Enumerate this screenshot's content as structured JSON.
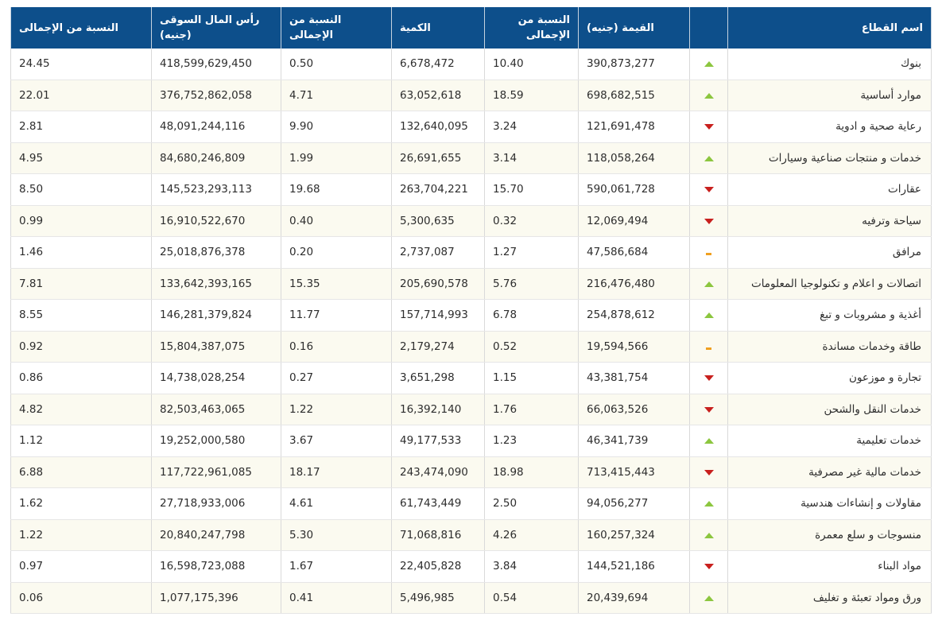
{
  "colors": {
    "header_bg": "#0d4f8b",
    "up": "#8cc63f",
    "down": "#c8201e",
    "flat": "#f0a020",
    "row_alt": "#fbfaf0"
  },
  "table": {
    "headers": {
      "sector": "اسم القطاع",
      "trend": "",
      "value": "القيمة (جنيه)",
      "value_pct": "النسبة من الإجمالى",
      "quantity": "الكمية",
      "quantity_pct": "النسبة من الإجمالى",
      "market_cap": "رأس المال السوقى (جنيه)",
      "market_cap_pct": "النسبة من الإجمالى"
    },
    "rows": [
      {
        "sector": "بنوك",
        "trend": "up",
        "value": "390,873,277",
        "value_pct": "10.40",
        "quantity": "6,678,472",
        "quantity_pct": "0.50",
        "market_cap": "418,599,629,450",
        "market_cap_pct": "24.45"
      },
      {
        "sector": "موارد أساسية",
        "trend": "up",
        "value": "698,682,515",
        "value_pct": "18.59",
        "quantity": "63,052,618",
        "quantity_pct": "4.71",
        "market_cap": "376,752,862,058",
        "market_cap_pct": "22.01"
      },
      {
        "sector": "رعاية صحية و ادوية",
        "trend": "down",
        "value": "121,691,478",
        "value_pct": "3.24",
        "quantity": "132,640,095",
        "quantity_pct": "9.90",
        "market_cap": "48,091,244,116",
        "market_cap_pct": "2.81"
      },
      {
        "sector": "خدمات و منتجات صناعية وسيارات",
        "trend": "up",
        "value": "118,058,264",
        "value_pct": "3.14",
        "quantity": "26,691,655",
        "quantity_pct": "1.99",
        "market_cap": "84,680,246,809",
        "market_cap_pct": "4.95"
      },
      {
        "sector": "عقارات",
        "trend": "down",
        "value": "590,061,728",
        "value_pct": "15.70",
        "quantity": "263,704,221",
        "quantity_pct": "19.68",
        "market_cap": "145,523,293,113",
        "market_cap_pct": "8.50"
      },
      {
        "sector": "سياحة وترفيه",
        "trend": "down",
        "value": "12,069,494",
        "value_pct": "0.32",
        "quantity": "5,300,635",
        "quantity_pct": "0.40",
        "market_cap": "16,910,522,670",
        "market_cap_pct": "0.99"
      },
      {
        "sector": "مرافق",
        "trend": "flat",
        "value": "47,586,684",
        "value_pct": "1.27",
        "quantity": "2,737,087",
        "quantity_pct": "0.20",
        "market_cap": "25,018,876,378",
        "market_cap_pct": "1.46"
      },
      {
        "sector": "اتصالات و اعلام و تكنولوجيا المعلومات",
        "trend": "up",
        "value": "216,476,480",
        "value_pct": "5.76",
        "quantity": "205,690,578",
        "quantity_pct": "15.35",
        "market_cap": "133,642,393,165",
        "market_cap_pct": "7.81"
      },
      {
        "sector": "أغذية و مشروبات و تبغ",
        "trend": "up",
        "value": "254,878,612",
        "value_pct": "6.78",
        "quantity": "157,714,993",
        "quantity_pct": "11.77",
        "market_cap": "146,281,379,824",
        "market_cap_pct": "8.55"
      },
      {
        "sector": "طاقة وخدمات مساندة",
        "trend": "flat",
        "value": "19,594,566",
        "value_pct": "0.52",
        "quantity": "2,179,274",
        "quantity_pct": "0.16",
        "market_cap": "15,804,387,075",
        "market_cap_pct": "0.92"
      },
      {
        "sector": "تجارة و موزعون",
        "trend": "down",
        "value": "43,381,754",
        "value_pct": "1.15",
        "quantity": "3,651,298",
        "quantity_pct": "0.27",
        "market_cap": "14,738,028,254",
        "market_cap_pct": "0.86"
      },
      {
        "sector": "خدمات النقل والشحن",
        "trend": "down",
        "value": "66,063,526",
        "value_pct": "1.76",
        "quantity": "16,392,140",
        "quantity_pct": "1.22",
        "market_cap": "82,503,463,065",
        "market_cap_pct": "4.82"
      },
      {
        "sector": "خدمات تعليمية",
        "trend": "up",
        "value": "46,341,739",
        "value_pct": "1.23",
        "quantity": "49,177,533",
        "quantity_pct": "3.67",
        "market_cap": "19,252,000,580",
        "market_cap_pct": "1.12"
      },
      {
        "sector": "خدمات مالية غير مصرفية",
        "trend": "down",
        "value": "713,415,443",
        "value_pct": "18.98",
        "quantity": "243,474,090",
        "quantity_pct": "18.17",
        "market_cap": "117,722,961,085",
        "market_cap_pct": "6.88"
      },
      {
        "sector": "مقاولات و إنشاءات هندسية",
        "trend": "up",
        "value": "94,056,277",
        "value_pct": "2.50",
        "quantity": "61,743,449",
        "quantity_pct": "4.61",
        "market_cap": "27,718,933,006",
        "market_cap_pct": "1.62"
      },
      {
        "sector": "منسوجات و سلع معمرة",
        "trend": "up",
        "value": "160,257,324",
        "value_pct": "4.26",
        "quantity": "71,068,816",
        "quantity_pct": "5.30",
        "market_cap": "20,840,247,798",
        "market_cap_pct": "1.22"
      },
      {
        "sector": "مواد البناء",
        "trend": "down",
        "value": "144,521,186",
        "value_pct": "3.84",
        "quantity": "22,405,828",
        "quantity_pct": "1.67",
        "market_cap": "16,598,723,088",
        "market_cap_pct": "0.97"
      },
      {
        "sector": "ورق ومواد تعبئة و تغليف",
        "trend": "up",
        "value": "20,439,694",
        "value_pct": "0.54",
        "quantity": "5,496,985",
        "quantity_pct": "0.41",
        "market_cap": "1,077,175,396",
        "market_cap_pct": "0.06"
      }
    ]
  }
}
